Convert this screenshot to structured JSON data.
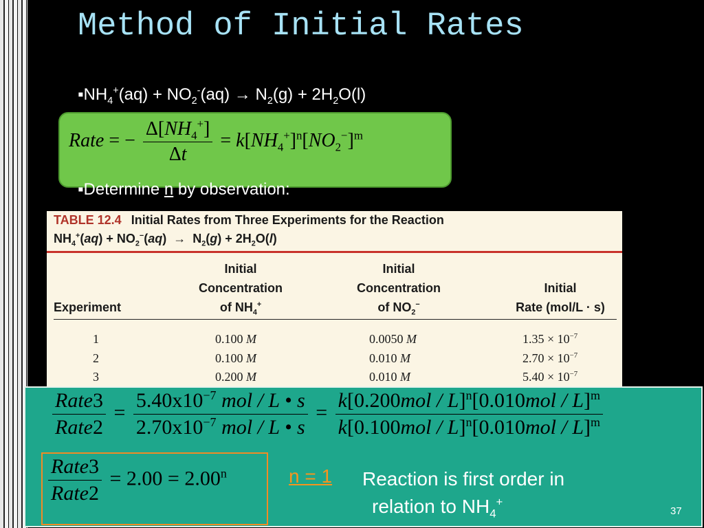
{
  "title": "Method of Initial Rates",
  "bullet_1": [
    {
      "t": "NH"
    },
    {
      "sub": "4"
    },
    {
      "sup": "+"
    },
    {
      "t": "(aq) + NO"
    },
    {
      "sub": "2"
    },
    {
      "sup": "-"
    },
    {
      "t": "(aq) → N"
    },
    {
      "sub": "2"
    },
    {
      "t": "(g) + 2H"
    },
    {
      "sub": "2"
    },
    {
      "t": "O(l)"
    }
  ],
  "rate_law": [
    {
      "i": "Rate"
    },
    {
      "t": " = − "
    },
    {
      "frac": {
        "num": [
          {
            "t": "Δ["
          },
          {
            "i": "NH"
          },
          {
            "sub": "4"
          },
          {
            "sup": "+"
          },
          {
            "t": "]"
          }
        ],
        "den": [
          {
            "t": "Δ"
          },
          {
            "i": "t"
          }
        ]
      }
    },
    {
      "t": " = "
    },
    {
      "i": "k"
    },
    {
      "t": "["
    },
    {
      "i": "NH"
    },
    {
      "sub": "4"
    },
    {
      "sup": "+"
    },
    {
      "t": "]"
    },
    {
      "sup": "n"
    },
    {
      "t": "["
    },
    {
      "i": "NO"
    },
    {
      "sub": "2"
    },
    {
      "sup": "−"
    },
    {
      "t": "]"
    },
    {
      "sup": "m"
    }
  ],
  "bullet_2": [
    {
      "t": "Determine "
    },
    {
      "u": "n"
    },
    {
      "t": " by observation:"
    }
  ],
  "table": {
    "label": "TABLE 12.4",
    "caption": "Initial Rates from Three Experiments for the Reaction",
    "reaction": [
      {
        "t": "NH"
      },
      {
        "sub": "4"
      },
      {
        "sup": "+"
      },
      {
        "t": "("
      },
      {
        "i": "aq"
      },
      {
        "t": ") + NO"
      },
      {
        "sub": "2"
      },
      {
        "sup": "−"
      },
      {
        "t": "("
      },
      {
        "i": "aq"
      },
      {
        "t": ")  →  N"
      },
      {
        "sub": "2"
      },
      {
        "t": "("
      },
      {
        "i": "g"
      },
      {
        "t": ") + 2H"
      },
      {
        "sub": "2"
      },
      {
        "t": "O("
      },
      {
        "i": "l"
      },
      {
        "t": ")"
      }
    ],
    "headers": [
      [
        [
          {
            "t": "Experiment"
          }
        ]
      ],
      [
        [
          {
            "t": "Initial"
          }
        ],
        [
          {
            "t": "Concentration"
          }
        ],
        [
          {
            "t": "of NH"
          },
          {
            "sub": "4"
          },
          {
            "sup": "+"
          }
        ]
      ],
      [
        [
          {
            "t": "Initial"
          }
        ],
        [
          {
            "t": "Concentration"
          }
        ],
        [
          {
            "t": "of NO"
          },
          {
            "sub": "2"
          },
          {
            "sup": "−"
          }
        ]
      ],
      [
        [
          {
            "t": "Initial"
          }
        ],
        [
          {
            "t": "Rate (mol/L · s)"
          }
        ]
      ]
    ],
    "rows": [
      [
        [
          {
            "t": "1"
          }
        ],
        [
          {
            "t": "0.100 "
          },
          {
            "i": "M"
          }
        ],
        [
          {
            "t": "0.0050 "
          },
          {
            "i": "M"
          }
        ],
        [
          {
            "t": "1.35 × 10"
          },
          {
            "sup": "−7"
          }
        ]
      ],
      [
        [
          {
            "t": "2"
          }
        ],
        [
          {
            "t": "0.100 "
          },
          {
            "i": "M"
          }
        ],
        [
          {
            "t": "0.010 "
          },
          {
            "i": "M"
          }
        ],
        [
          {
            "t": "2.70 × 10"
          },
          {
            "sup": "−7"
          }
        ]
      ],
      [
        [
          {
            "t": "3"
          }
        ],
        [
          {
            "t": "0.200 "
          },
          {
            "i": "M"
          }
        ],
        [
          {
            "t": "0.010 "
          },
          {
            "i": "M"
          }
        ],
        [
          {
            "t": "5.40 × 10"
          },
          {
            "sup": "−7"
          }
        ]
      ]
    ]
  },
  "ratio_equation": [
    {
      "frac": {
        "num": [
          {
            "i": "Rate"
          },
          {
            "t": "3"
          }
        ],
        "den": [
          {
            "i": "Rate"
          },
          {
            "t": "2"
          }
        ]
      }
    },
    {
      "t": " = "
    },
    {
      "frac": {
        "num": [
          {
            "t": "5.40x10"
          },
          {
            "sup": "−7"
          },
          {
            "i": " mol / L • s"
          }
        ],
        "den": [
          {
            "t": "2.70x10"
          },
          {
            "sup": "−7"
          },
          {
            "i": " mol / L • s"
          }
        ]
      }
    },
    {
      "t": " = "
    },
    {
      "frac": {
        "num": [
          {
            "i": "k"
          },
          {
            "t": "[0.200"
          },
          {
            "i": "mol / L"
          },
          {
            "t": "]"
          },
          {
            "sup": "n"
          },
          {
            "t": "[0.010"
          },
          {
            "i": "mol / L"
          },
          {
            "t": "]"
          },
          {
            "sup": "m"
          }
        ],
        "den": [
          {
            "i": "k"
          },
          {
            "t": "[0.100"
          },
          {
            "i": "mol / L"
          },
          {
            "t": "]"
          },
          {
            "sup": "n"
          },
          {
            "t": "[0.010"
          },
          {
            "i": "mol / L"
          },
          {
            "t": "]"
          },
          {
            "sup": "m"
          }
        ]
      }
    }
  ],
  "result_equation": [
    {
      "frac": {
        "num": [
          {
            "i": "Rate"
          },
          {
            "t": "3"
          }
        ],
        "den": [
          {
            "i": "Rate"
          },
          {
            "t": "2"
          }
        ]
      }
    },
    {
      "t": " = 2.00 = 2.00"
    },
    {
      "sup": "n"
    }
  ],
  "answer": [
    {
      "u": "n = 1"
    }
  ],
  "conclusion": [
    [
      {
        "t": "Reaction is first order in"
      }
    ],
    [
      {
        "t": "relation to NH"
      },
      {
        "sub": "4"
      },
      {
        "sup": "+"
      }
    ]
  ],
  "page_number": "37"
}
